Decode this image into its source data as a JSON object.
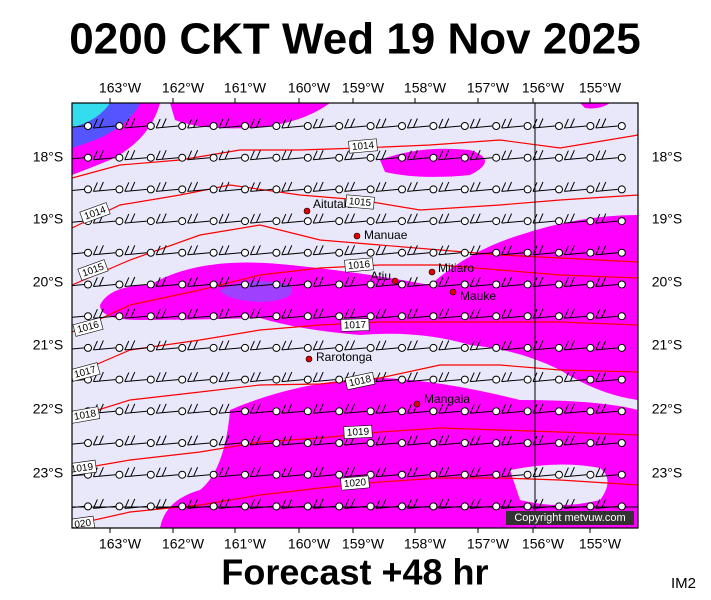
{
  "title": "0200 CKT Wed 19 Nov 2025",
  "footer": "Forecast +48 hr",
  "image_id": "IM2",
  "copyright": "Copyright metvuw.com",
  "longitude_labels": [
    "163°W",
    "162°W",
    "161°W",
    "160°W",
    "159°W",
    "158°W",
    "157°W",
    "156°W",
    "155°W"
  ],
  "latitude_labels": [
    "18°S",
    "19°S",
    "20°S",
    "21°S",
    "22°S",
    "23°S"
  ],
  "places": [
    "Aitutaki",
    "Manuae",
    "Atiu",
    "Mitiaro",
    "Mauke",
    "Rarotonga",
    "Mangaia"
  ],
  "isobar_labels": [
    "1014",
    "1015",
    "1014",
    "1015",
    "1016",
    "1016",
    "1017",
    "1017",
    "1018",
    "1018",
    "1019",
    "1019",
    "1020",
    "1020"
  ]
}
